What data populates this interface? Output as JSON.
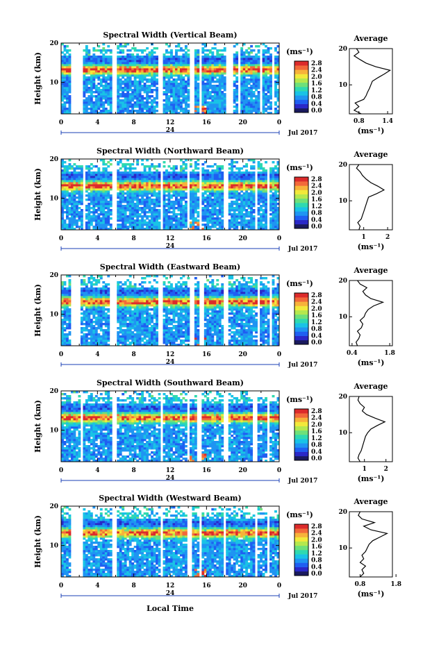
{
  "colorbar": {
    "unit_label": "(ms⁻¹)",
    "ticks": [
      "0.0",
      "0.4",
      "0.8",
      "1.2",
      "1.6",
      "2.0",
      "2.4",
      "2.8"
    ],
    "colors": [
      "#1a1a5e",
      "#2a28c8",
      "#1f5ff2",
      "#1f95f2",
      "#19c3e6",
      "#2fd9b0",
      "#6ee07a",
      "#b5e84e",
      "#f2e93a",
      "#f7b23a",
      "#f2693a",
      "#dc2b2b"
    ]
  },
  "x_ticks": [
    "0",
    "4",
    "8",
    "12",
    "16",
    "20",
    "0"
  ],
  "day_label": "24",
  "month_label": "Jul 2017",
  "y_axis_label": "Height (km)",
  "y_ticks": [
    "20",
    "10"
  ],
  "avg_title": "Average",
  "avg_unit": "(ms⁻¹)",
  "x_axis_label": "Local Time",
  "chart_data": [
    {
      "type": "heatmap",
      "title": "Spectral Width (Vertical Beam)",
      "xlabel": "",
      "ylabel": "Height (km)",
      "xlim": [
        0,
        24
      ],
      "ylim": [
        2,
        20
      ],
      "data_gaps_hours": [
        [
          1.0,
          2.3
        ],
        [
          5.7,
          6.1
        ],
        [
          10.8,
          11.3
        ],
        [
          14.2,
          14.6
        ],
        [
          15.2,
          15.6
        ],
        [
          18.1,
          18.8
        ],
        [
          19.4,
          19.7
        ],
        [
          21.8,
          22.1
        ],
        [
          23.2,
          23.5
        ]
      ],
      "average_profile": {
        "xlabel": "(ms⁻¹)",
        "x_ticks": [
          "0.8",
          "1.4"
        ],
        "xlim": [
          0.6,
          1.5
        ],
        "height_km": [
          2,
          3,
          4,
          5,
          6,
          7,
          8,
          9,
          10,
          11,
          12,
          13,
          14,
          15,
          16,
          17,
          18,
          19,
          20
        ],
        "values": [
          0.85,
          0.7,
          0.8,
          0.72,
          0.9,
          0.95,
          0.98,
          1.02,
          1.05,
          1.08,
          1.2,
          1.33,
          1.45,
          1.15,
          0.95,
          0.82,
          0.7,
          0.8,
          0.75
        ]
      }
    },
    {
      "type": "heatmap",
      "title": "Spectral Width (Northward Beam)",
      "xlabel": "",
      "ylabel": "Height (km)",
      "xlim": [
        0,
        24
      ],
      "ylim": [
        2,
        20
      ],
      "data_gaps_hours": [
        [
          2.3,
          2.6
        ],
        [
          5.5,
          6.0
        ],
        [
          11.0,
          11.3
        ],
        [
          13.8,
          14.1
        ],
        [
          15.1,
          15.5
        ],
        [
          17.9,
          18.3
        ],
        [
          21.3,
          21.7
        ],
        [
          22.6,
          22.9
        ]
      ],
      "average_profile": {
        "xlabel": "(ms⁻¹)",
        "x_ticks": [
          "1",
          "2"
        ],
        "xlim": [
          0.4,
          2.2
        ],
        "height_km": [
          2,
          3,
          4,
          5,
          6,
          7,
          8,
          9,
          10,
          11,
          12,
          13,
          14,
          15,
          16,
          17,
          18,
          19,
          20
        ],
        "values": [
          0.8,
          0.85,
          0.75,
          0.9,
          0.95,
          1.0,
          1.05,
          1.1,
          1.15,
          1.2,
          1.55,
          1.85,
          1.6,
          1.3,
          1.1,
          0.95,
          0.85,
          0.7,
          0.8
        ]
      }
    },
    {
      "type": "heatmap",
      "title": "Spectral Width (Eastward Beam)",
      "xlabel": "",
      "ylabel": "Height (km)",
      "xlim": [
        0,
        24
      ],
      "ylim": [
        2,
        20
      ],
      "data_gaps_hours": [
        [
          1.0,
          2.2
        ],
        [
          5.4,
          6.0
        ],
        [
          10.8,
          11.3
        ],
        [
          14.2,
          14.6
        ],
        [
          15.3,
          15.8
        ],
        [
          17.8,
          18.4
        ],
        [
          21.5,
          21.8
        ],
        [
          22.8,
          23.1
        ]
      ],
      "average_profile": {
        "xlabel": "(ms⁻¹)",
        "x_ticks": [
          "0.4",
          "1.8"
        ],
        "xlim": [
          0.3,
          1.9
        ],
        "height_km": [
          2,
          3,
          4,
          5,
          6,
          7,
          8,
          9,
          10,
          11,
          12,
          13,
          14,
          15,
          16,
          17,
          18,
          19,
          20
        ],
        "values": [
          0.6,
          0.55,
          0.65,
          0.7,
          0.6,
          0.75,
          0.8,
          0.7,
          0.85,
          0.9,
          1.0,
          1.2,
          1.55,
          1.1,
          0.9,
          0.8,
          0.95,
          0.7,
          0.6
        ]
      }
    },
    {
      "type": "heatmap",
      "title": "Spectral Width (Southward Beam)",
      "xlabel": "",
      "ylabel": "Height (km)",
      "xlim": [
        0,
        24
      ],
      "ylim": [
        2,
        20
      ],
      "data_gaps_hours": [
        [
          2.2,
          2.5
        ],
        [
          5.6,
          6.0
        ],
        [
          10.9,
          11.2
        ],
        [
          13.9,
          14.2
        ],
        [
          15.0,
          15.4
        ],
        [
          18.0,
          18.3
        ],
        [
          21.2,
          21.6
        ],
        [
          22.6,
          22.9
        ]
      ],
      "average_profile": {
        "xlabel": "(ms⁻¹)",
        "x_ticks": [
          "1",
          "2"
        ],
        "xlim": [
          0.3,
          2.3
        ],
        "height_km": [
          2,
          3,
          4,
          5,
          6,
          7,
          8,
          9,
          10,
          11,
          12,
          13,
          14,
          15,
          16,
          17,
          18,
          19,
          20
        ],
        "values": [
          0.8,
          0.7,
          0.75,
          0.85,
          0.9,
          0.95,
          1.0,
          1.05,
          1.15,
          1.3,
          1.6,
          1.95,
          1.5,
          1.1,
          0.9,
          1.0,
          0.8,
          0.7,
          0.75
        ]
      }
    },
    {
      "type": "heatmap",
      "title": "Spectral Width (Westward Beam)",
      "xlabel": "",
      "ylabel": "Height (km)",
      "xlim": [
        0,
        24
      ],
      "ylim": [
        2,
        20
      ],
      "data_gaps_hours": [
        [
          1.0,
          2.3
        ],
        [
          5.6,
          6.0
        ],
        [
          10.9,
          11.2
        ],
        [
          14.0,
          14.3
        ],
        [
          15.2,
          15.5
        ],
        [
          17.8,
          18.2
        ],
        [
          21.3,
          21.7
        ],
        [
          22.6,
          22.9
        ]
      ],
      "average_profile": {
        "xlabel": "(ms⁻¹)",
        "x_ticks": [
          "0.8",
          "1.8"
        ],
        "xlim": [
          0.5,
          1.7
        ],
        "height_km": [
          2,
          3,
          4,
          5,
          6,
          7,
          8,
          9,
          10,
          11,
          12,
          13,
          14,
          15,
          16,
          17,
          18,
          19,
          20
        ],
        "values": [
          0.8,
          0.9,
          0.85,
          0.95,
          0.8,
          0.9,
          0.85,
          0.95,
          1.0,
          1.05,
          1.15,
          1.35,
          1.55,
          1.1,
          0.9,
          1.2,
          0.85,
          0.75,
          0.8
        ]
      }
    }
  ]
}
